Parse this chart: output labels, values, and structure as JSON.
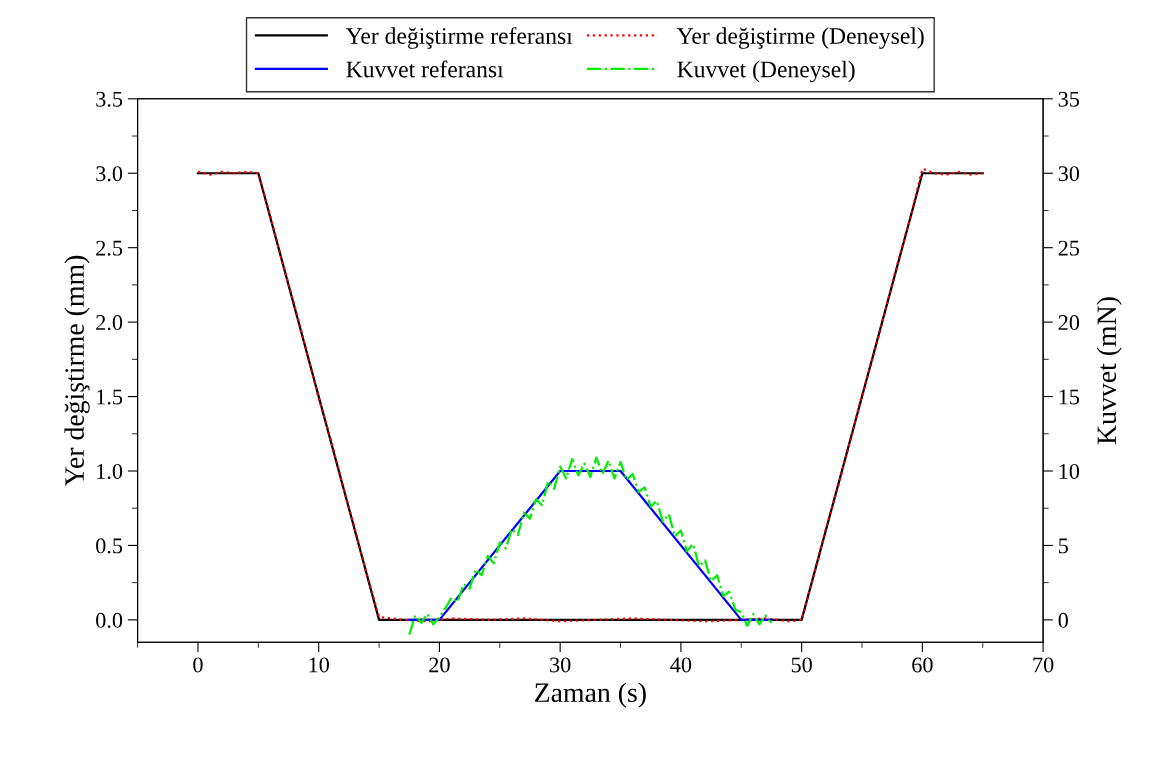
{
  "chart_data": {
    "type": "line",
    "xlabel": "Zaman (s)",
    "ylabel": "Yer değiştirme (mm)",
    "y2label": "Kuvvet (mN)",
    "xlim": [
      -5,
      70
    ],
    "xticks": [
      0,
      10,
      20,
      30,
      40,
      50,
      60,
      70
    ],
    "ylim": [
      -0.15,
      3.5
    ],
    "yticks": [
      {
        "value": 0,
        "label": "0.0"
      },
      {
        "value": 0.5,
        "label": "0.5"
      },
      {
        "value": 1,
        "label": "1.0"
      },
      {
        "value": 1.5,
        "label": "1.5"
      },
      {
        "value": 2,
        "label": "2.0"
      },
      {
        "value": 2.5,
        "label": "2.5"
      },
      {
        "value": 3,
        "label": "3.0"
      },
      {
        "value": 3.5,
        "label": "3.5"
      }
    ],
    "y2lim": [
      -1.5,
      35
    ],
    "y2ticks": [
      0,
      5,
      10,
      15,
      20,
      25,
      30,
      35
    ],
    "legend": "top",
    "grid": false,
    "marker": "none",
    "series": [
      {
        "name": "Yer değiştirme referansı",
        "color": "#000000",
        "line_style": "solid",
        "x": [
          0,
          5,
          15,
          50,
          60,
          65
        ],
        "values": [
          3,
          3,
          0,
          0,
          3,
          3
        ]
      },
      {
        "name": "Yer değiştirme (Deneysel)",
        "color": "#ff0000",
        "line_style": "dotted",
        "x": [
          0,
          1,
          2,
          3,
          4,
          5,
          6,
          7,
          8,
          9,
          10,
          11,
          12,
          13,
          14,
          15,
          17,
          19,
          21,
          24,
          27,
          30,
          33,
          36,
          39,
          42,
          45,
          47,
          49,
          50,
          51,
          52,
          53,
          54,
          55,
          56,
          57,
          58,
          59,
          60,
          61,
          62,
          63,
          64,
          65
        ],
        "values": [
          3.01,
          2.99,
          3.01,
          3.0,
          3.01,
          3.0,
          2.71,
          2.4,
          2.11,
          1.8,
          1.49,
          1.21,
          0.9,
          0.61,
          0.3,
          0.02,
          0.0,
          -0.01,
          0.01,
          0.0,
          0.01,
          -0.01,
          0.0,
          0.01,
          0.0,
          -0.01,
          0.0,
          0.01,
          -0.01,
          0.0,
          0.3,
          0.61,
          0.89,
          1.2,
          1.51,
          1.79,
          2.1,
          2.41,
          2.7,
          3.03,
          3.0,
          2.99,
          3.01,
          2.99,
          3.0
        ]
      },
      {
        "name": "Kuvvet referansı",
        "color": "#0000ff",
        "line_style": "solid",
        "axis": "y2",
        "x": [
          17.5,
          20,
          30,
          35,
          45,
          47.5
        ],
        "values": [
          0,
          0,
          10,
          10,
          0,
          0
        ]
      },
      {
        "name": "Kuvvet (Deneysel)",
        "color": "#00ee00",
        "line_style": "dashdot",
        "axis": "y2",
        "x": [
          17.5,
          18,
          18.5,
          19,
          19.5,
          20,
          20.5,
          21,
          21.5,
          22,
          22.5,
          23,
          23.5,
          24,
          24.5,
          25,
          25.5,
          26,
          26.5,
          27,
          27.5,
          28,
          28.5,
          29,
          29.5,
          30,
          30.5,
          31,
          31.5,
          32,
          32.5,
          33,
          33.5,
          34,
          34.5,
          35,
          35.5,
          36,
          36.5,
          37,
          37.5,
          38,
          38.5,
          39,
          39.5,
          40,
          40.5,
          41,
          41.5,
          42,
          42.5,
          43,
          43.5,
          44,
          44.5,
          45,
          45.5,
          46,
          46.5,
          47,
          47.5
        ],
        "values": [
          -1.0,
          0.3,
          -0.2,
          0.4,
          -0.3,
          0.2,
          0.8,
          1.5,
          1.2,
          2.4,
          2.1,
          3.4,
          3.0,
          4.3,
          3.8,
          5.2,
          4.8,
          6.1,
          5.7,
          7.2,
          6.8,
          8.1,
          7.7,
          9.3,
          8.8,
          10.3,
          9.5,
          10.8,
          9.7,
          10.5,
          9.6,
          10.9,
          9.8,
          10.7,
          9.5,
          10.6,
          9.4,
          9.8,
          8.6,
          8.9,
          7.6,
          8.0,
          6.6,
          7.1,
          5.6,
          6.0,
          4.6,
          5.1,
          3.6,
          4.0,
          2.6,
          3.0,
          1.6,
          1.9,
          0.7,
          0.5,
          -0.4,
          0.4,
          -0.3,
          0.3,
          -0.2
        ]
      }
    ]
  }
}
